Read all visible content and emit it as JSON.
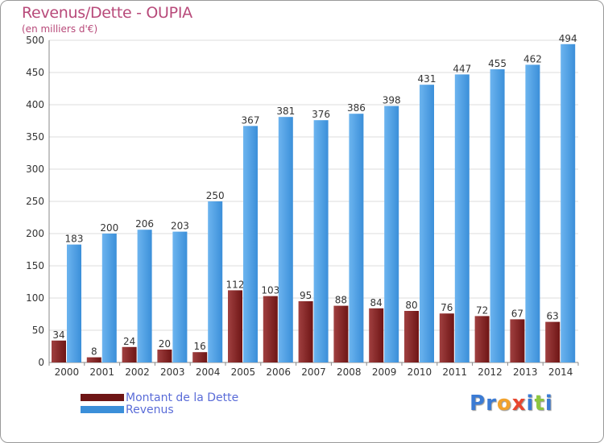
{
  "title": "Revenus/Dette - OUPIA",
  "subtitle": "(en milliers d'€)",
  "brand": {
    "text": "Proxiti",
    "letter_colors": [
      "#3b7bd4",
      "#3b7bd4",
      "#f2a22c",
      "#e8462f",
      "#3b7bd4",
      "#8cc63f",
      "#3b7bd4"
    ]
  },
  "colors": {
    "debt": "#6e1515",
    "debt_light": "#a04040",
    "revenue": "#3b8fd9",
    "revenue_light": "#6cb4ef",
    "grid": "#dddddd",
    "axis": "#888888",
    "title": "#b84a7a",
    "legend_text": "#5a6cd8"
  },
  "chart_data": {
    "type": "bar",
    "categories": [
      "2000",
      "2001",
      "2002",
      "2003",
      "2004",
      "2005",
      "2006",
      "2007",
      "2008",
      "2009",
      "2010",
      "2011",
      "2012",
      "2013",
      "2014"
    ],
    "series": [
      {
        "name": "Montant de la Dette",
        "values": [
          34,
          8,
          24,
          20,
          16,
          112,
          103,
          95,
          88,
          84,
          80,
          76,
          72,
          67,
          63
        ]
      },
      {
        "name": "Revenus",
        "values": [
          183,
          200,
          206,
          203,
          250,
          367,
          381,
          376,
          386,
          398,
          431,
          447,
          455,
          462,
          494
        ]
      }
    ],
    "ylim": [
      0,
      500
    ],
    "yticks": [
      0,
      50,
      100,
      150,
      200,
      250,
      300,
      350,
      400,
      450,
      500
    ],
    "grid": true,
    "legend_position": "bottom-left"
  }
}
